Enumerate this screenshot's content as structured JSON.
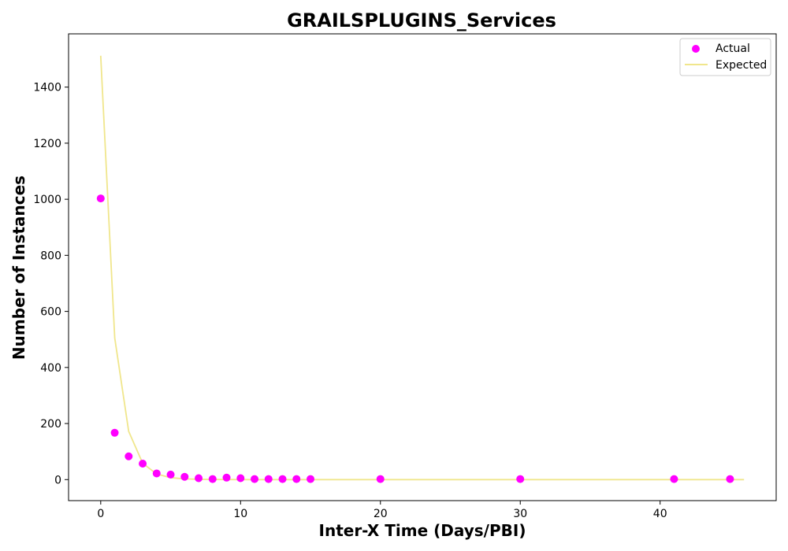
{
  "chart_data": {
    "type": "scatter",
    "title": "GRAILSPLUGINS_Services",
    "xlabel": "Inter-X Time (Days/PBI)",
    "ylabel": "Number of Instances",
    "xlim": [
      -2.3,
      48.3
    ],
    "ylim": [
      -75,
      1590
    ],
    "xticks": [
      0,
      10,
      20,
      30,
      40
    ],
    "yticks": [
      0,
      200,
      400,
      600,
      800,
      1000,
      1200,
      1400
    ],
    "grid": false,
    "legend_position": "upper-right",
    "series": [
      {
        "name": "Actual",
        "kind": "scatter",
        "color": "#ff00ff",
        "x": [
          0,
          1,
          2,
          3,
          4,
          5,
          6,
          7,
          8,
          9,
          10,
          11,
          12,
          13,
          14,
          15,
          20,
          30,
          41,
          45
        ],
        "y": [
          1003,
          167,
          83,
          57,
          22,
          18,
          10,
          5,
          2,
          7,
          5,
          2,
          2,
          2,
          2,
          2,
          2,
          2,
          2,
          2
        ]
      },
      {
        "name": "Expected",
        "kind": "line",
        "color": "#f0e68c",
        "x": [
          0,
          1,
          2,
          3,
          4,
          5,
          6,
          7,
          8,
          9,
          10,
          11,
          12,
          13,
          14,
          15,
          16,
          18,
          20,
          25,
          30,
          35,
          40,
          46
        ],
        "y": [
          1512,
          505,
          172,
          58,
          20,
          7,
          2.5,
          1,
          0.5,
          0.2,
          0.1,
          0,
          0,
          0,
          0,
          0,
          0,
          0,
          0,
          0,
          0,
          0,
          0,
          0
        ]
      }
    ]
  }
}
